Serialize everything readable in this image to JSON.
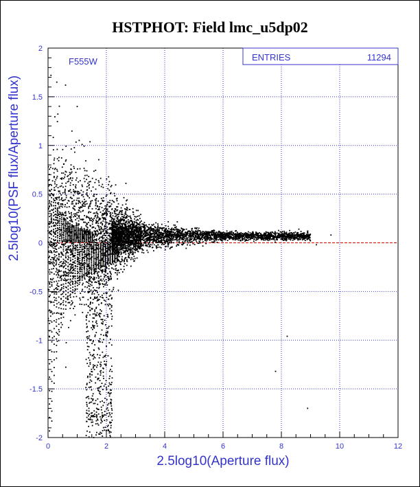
{
  "chart_data": {
    "type": "scatter",
    "title": "HSTPHOT: Field lmc_u5dp02",
    "xlabel": "2.5log10(Aperture flux)",
    "ylabel": "2.5log10(PSF flux/Aperture flux)",
    "xlim": [
      0,
      12
    ],
    "ylim": [
      -2,
      2
    ],
    "x_ticks": [
      "0",
      "2",
      "4",
      "6",
      "8",
      "10",
      "12"
    ],
    "y_ticks": [
      "2",
      "1.5",
      "1",
      "0.5",
      "0",
      "-0.5",
      "-1",
      "-1.5",
      "-2"
    ],
    "x_tick_values": [
      0,
      2,
      4,
      6,
      8,
      10,
      12
    ],
    "y_tick_values": [
      2,
      1.5,
      1,
      0.5,
      0,
      -0.5,
      -1,
      -1.5,
      -2
    ],
    "grid": true,
    "reference_line": {
      "y": 0,
      "style": "dashed"
    },
    "filter_label": "F555W",
    "stats": {
      "label": "ENTRIES",
      "value": "11294"
    },
    "sample_points": [
      [
        8.2,
        -0.96
      ],
      [
        8.9,
        -1.7
      ],
      [
        7.8,
        -1.32
      ],
      [
        9.2,
        -0.02
      ],
      [
        9.7,
        0.08
      ],
      [
        0.3,
        1.65
      ],
      [
        0.6,
        1.62
      ],
      [
        0.1,
        1.72
      ],
      [
        1.0,
        1.4
      ],
      [
        8.6,
        0.14
      ]
    ],
    "colors": {
      "title": "#0000cc",
      "axis_label": "#3333cc",
      "grid": "#3333cc",
      "points": "#000000",
      "reference_line": "#cc0000"
    }
  }
}
